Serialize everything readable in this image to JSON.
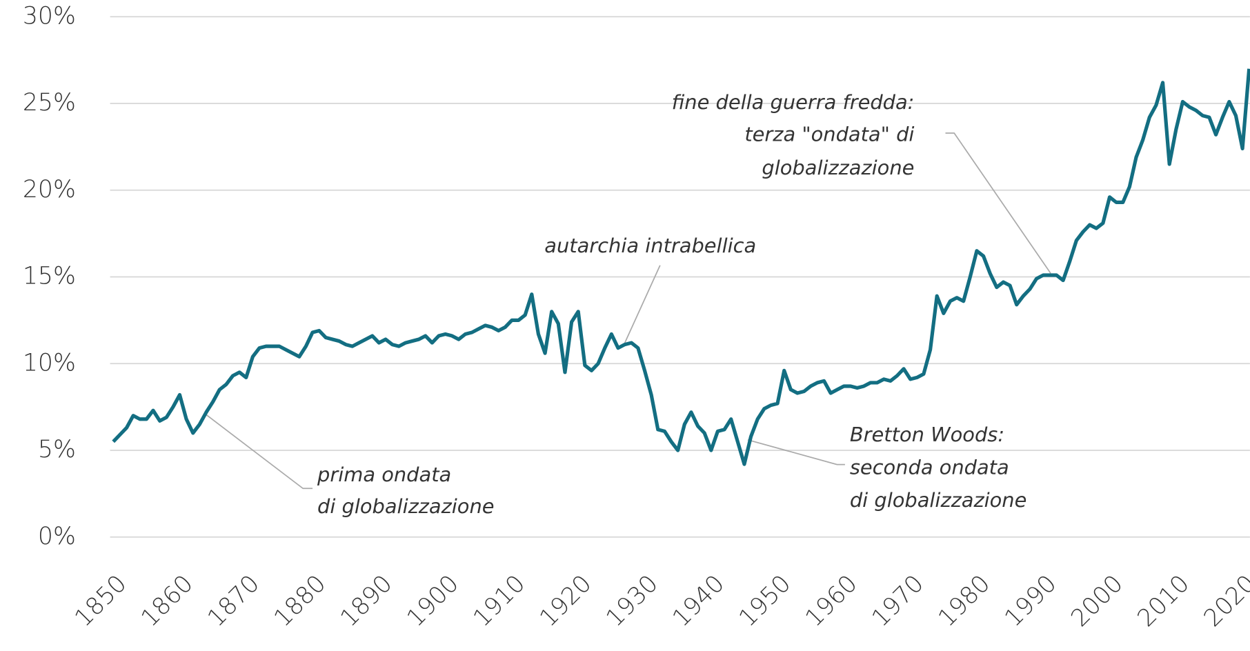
{
  "chart_data": {
    "type": "line",
    "x": [
      1850,
      1851,
      1852,
      1853,
      1854,
      1855,
      1856,
      1857,
      1858,
      1859,
      1860,
      1861,
      1862,
      1863,
      1864,
      1865,
      1866,
      1867,
      1868,
      1869,
      1870,
      1871,
      1872,
      1873,
      1874,
      1875,
      1876,
      1877,
      1878,
      1879,
      1880,
      1881,
      1882,
      1883,
      1884,
      1885,
      1886,
      1887,
      1888,
      1889,
      1890,
      1891,
      1892,
      1893,
      1894,
      1895,
      1896,
      1897,
      1898,
      1899,
      1900,
      1901,
      1902,
      1903,
      1904,
      1905,
      1906,
      1907,
      1908,
      1909,
      1910,
      1911,
      1912,
      1913,
      1914,
      1915,
      1916,
      1917,
      1918,
      1919,
      1920,
      1921,
      1922,
      1923,
      1924,
      1925,
      1926,
      1927,
      1928,
      1929,
      1930,
      1931,
      1932,
      1933,
      1934,
      1935,
      1936,
      1937,
      1938,
      1939,
      1940,
      1941,
      1942,
      1943,
      1944,
      1945,
      1946,
      1947,
      1948,
      1949,
      1950,
      1951,
      1952,
      1953,
      1954,
      1955,
      1956,
      1957,
      1958,
      1959,
      1960,
      1961,
      1962,
      1963,
      1964,
      1965,
      1966,
      1967,
      1968,
      1969,
      1970,
      1971,
      1972,
      1973,
      1974,
      1975,
      1976,
      1977,
      1978,
      1979,
      1980,
      1981,
      1982,
      1983,
      1984,
      1985,
      1986,
      1987,
      1988,
      1989,
      1990,
      1991,
      1992,
      1993,
      1994,
      1995,
      1996,
      1997,
      1998,
      1999,
      2000,
      2001,
      2002,
      2003,
      2004,
      2005,
      2006,
      2007,
      2008,
      2009,
      2010,
      2011,
      2012,
      2013,
      2014,
      2015,
      2016,
      2017,
      2018,
      2019,
      2020,
      2021
    ],
    "series": [
      {
        "color": "#136e82",
        "values": [
          5.5,
          5.9,
          6.3,
          7.0,
          6.8,
          6.8,
          7.3,
          6.7,
          6.9,
          7.5,
          8.2,
          6.8,
          6.0,
          6.5,
          7.2,
          7.8,
          8.5,
          8.8,
          9.3,
          9.5,
          9.2,
          10.4,
          10.9,
          11.0,
          11.0,
          11.0,
          10.8,
          10.6,
          10.4,
          11.0,
          11.8,
          11.9,
          11.5,
          11.4,
          11.3,
          11.1,
          11.0,
          11.2,
          11.4,
          11.6,
          11.2,
          11.4,
          11.1,
          11.0,
          11.2,
          11.3,
          11.4,
          11.6,
          11.2,
          11.6,
          11.7,
          11.6,
          11.4,
          11.7,
          11.8,
          12.0,
          12.2,
          12.1,
          11.9,
          12.1,
          12.5,
          12.5,
          12.8,
          14.0,
          11.7,
          10.6,
          13.0,
          12.3,
          9.5,
          12.4,
          13.0,
          9.9,
          9.6,
          10.0,
          10.9,
          11.7,
          10.9,
          11.1,
          11.2,
          10.9,
          9.6,
          8.2,
          6.2,
          6.1,
          5.5,
          5.0,
          6.5,
          7.2,
          6.4,
          6.0,
          5.0,
          6.1,
          6.2,
          6.8,
          5.5,
          4.2,
          5.8,
          6.8,
          7.4,
          7.6,
          7.7,
          9.6,
          8.5,
          8.3,
          8.4,
          8.7,
          8.9,
          9.0,
          8.3,
          8.5,
          8.7,
          8.7,
          8.6,
          8.7,
          8.9,
          8.9,
          9.1,
          9.0,
          9.3,
          9.7,
          9.1,
          9.2,
          9.4,
          10.8,
          13.9,
          12.9,
          13.6,
          13.8,
          13.6,
          15.0,
          16.5,
          16.2,
          15.2,
          14.4,
          14.7,
          14.5,
          13.4,
          13.9,
          14.3,
          14.9,
          15.1,
          15.1,
          15.1,
          14.8,
          15.9,
          17.1,
          17.6,
          18.0,
          17.8,
          18.1,
          19.6,
          19.3,
          19.3,
          20.2,
          21.9,
          22.9,
          24.2,
          24.9,
          26.2,
          21.5,
          23.5,
          25.1,
          24.8,
          24.6,
          24.3,
          24.2,
          23.2,
          24.2,
          25.1,
          24.3,
          22.4,
          27.0
        ]
      }
    ],
    "xlim": [
      1850,
      2021
    ],
    "xticks": [
      1850,
      1860,
      1870,
      1880,
      1890,
      1900,
      1910,
      1920,
      1930,
      1940,
      1950,
      1960,
      1970,
      1980,
      1990,
      2000,
      2010,
      2020
    ],
    "ylim": [
      0,
      30
    ],
    "yticks": [
      {
        "value": 0,
        "label": "0%"
      },
      {
        "value": 5,
        "label": "5%"
      },
      {
        "value": 10,
        "label": "10%"
      },
      {
        "value": 15,
        "label": "15%"
      },
      {
        "value": 20,
        "label": "20%"
      },
      {
        "value": 25,
        "label": "25%"
      },
      {
        "value": 30,
        "label": "30%"
      }
    ],
    "grid": true,
    "annotations": [
      {
        "lines": [
          "prima ondata",
          "di globalizzazione"
        ]
      },
      {
        "lines": [
          "autarchia intrabellica"
        ]
      },
      {
        "lines": [
          "Bretton Woods:",
          "seconda ondata",
          "di globalizzazione"
        ]
      },
      {
        "lines": [
          "fine della guerra fredda:",
          "terza \"ondata\" di",
          "globalizzazione"
        ]
      }
    ]
  }
}
